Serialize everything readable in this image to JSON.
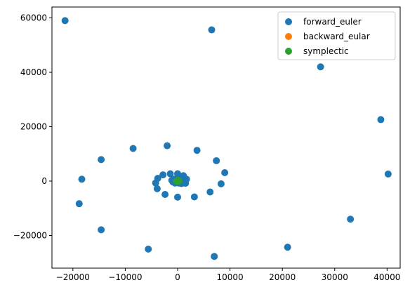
{
  "chart_data": {
    "type": "scatter",
    "xlim": [
      -24000,
      42500
    ],
    "ylim": [
      -32000,
      64000
    ],
    "xticks": [
      -20000,
      -10000,
      0,
      10000,
      20000,
      30000,
      40000
    ],
    "yticks": [
      -20000,
      0,
      20000,
      40000,
      60000
    ],
    "xtick_labels": [
      "−20000",
      "−10000",
      "0",
      "10000",
      "20000",
      "30000",
      "40000"
    ],
    "ytick_labels": [
      "−20000",
      "0",
      "20000",
      "40000",
      "60000"
    ],
    "grid": false,
    "legend_position": "upper-right",
    "series": [
      {
        "name": "forward_euler",
        "color": "#1f77b4",
        "x": [
          -21500,
          6500,
          27300,
          38800,
          40200,
          33000,
          21000,
          7000,
          -5600,
          -14600,
          -18800,
          -18300,
          -14600,
          -8500,
          -2000,
          3700,
          7400,
          9000,
          8300,
          6200,
          3200,
          0,
          -2400,
          -3900,
          -4200,
          -3800,
          -2800,
          -1400,
          0,
          1100,
          1700,
          1500,
          700,
          200,
          -500,
          -900,
          -1100,
          -700,
          0,
          800,
          1400,
          1500,
          900,
          300,
          -200
        ],
        "y": [
          59000,
          55600,
          42000,
          22600,
          2600,
          -14000,
          -24300,
          -27700,
          -25000,
          -17900,
          -8300,
          700,
          7900,
          12000,
          13000,
          11300,
          7500,
          3100,
          -1000,
          -4000,
          -5800,
          -5900,
          -4900,
          -2800,
          -700,
          1000,
          2300,
          2700,
          2700,
          2000,
          700,
          -800,
          -900,
          -700,
          -700,
          -300,
          300,
          700,
          900,
          500,
          -100,
          200,
          -800,
          -400,
          300
        ]
      },
      {
        "name": "backward_eular",
        "color": "#ff7f0e",
        "x": [
          0,
          80,
          -80,
          40,
          -40
        ],
        "y": [
          0,
          60,
          -60,
          -30,
          30
        ]
      },
      {
        "name": "symplectic",
        "color": "#2ca02c",
        "x": [
          0,
          100,
          -100,
          200,
          -200,
          0,
          0,
          60
        ],
        "y": [
          0,
          100,
          -100,
          0,
          0,
          150,
          -150,
          300
        ]
      }
    ]
  }
}
